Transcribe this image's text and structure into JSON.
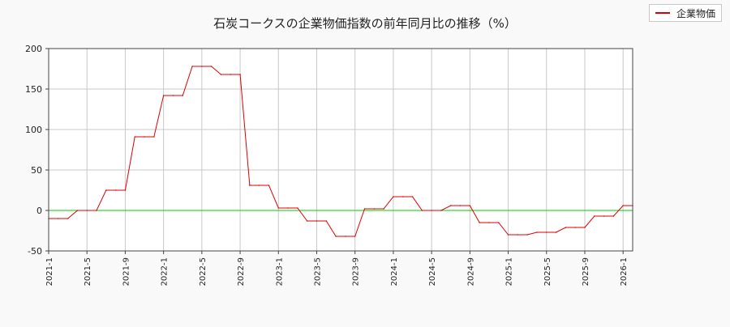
{
  "chart_data": {
    "type": "line",
    "title": "石炭コークスの企業物価指数の前年同月比の推移（%）",
    "xlabel": "",
    "ylabel": "",
    "ylim": [
      -50,
      200
    ],
    "yticks": [
      "-50",
      "0",
      "50",
      "100",
      "150",
      "200"
    ],
    "xticks": [
      "2021-1",
      "2021-5",
      "2021-9",
      "2022-1",
      "2022-5",
      "2022-9",
      "2023-1",
      "2023-5",
      "2023-9",
      "2024-1",
      "2024-5",
      "2024-9",
      "2025-1",
      "2025-5",
      "2025-9",
      "2026-1"
    ],
    "grid": true,
    "legend_position": "top-right",
    "zero_line_color": "#00cc00",
    "series": [
      {
        "name": "企業物価",
        "color": "#dd0000",
        "x": [
          "2021-1",
          "2021-2",
          "2021-3",
          "2021-4",
          "2021-5",
          "2021-6",
          "2021-7",
          "2021-8",
          "2021-9",
          "2021-10",
          "2021-11",
          "2021-12",
          "2022-1",
          "2022-2",
          "2022-3",
          "2022-4",
          "2022-5",
          "2022-6",
          "2022-7",
          "2022-8",
          "2022-9",
          "2022-10",
          "2022-11",
          "2022-12",
          "2023-1",
          "2023-2",
          "2023-3",
          "2023-4",
          "2023-5",
          "2023-6",
          "2023-7",
          "2023-8",
          "2023-9",
          "2023-10",
          "2023-11",
          "2023-12",
          "2024-1",
          "2024-2",
          "2024-3",
          "2024-4",
          "2024-5",
          "2024-6",
          "2024-7",
          "2024-8",
          "2024-9",
          "2024-10",
          "2024-11",
          "2024-12",
          "2025-1",
          "2025-2",
          "2025-3",
          "2025-4",
          "2025-5",
          "2025-6",
          "2025-7",
          "2025-8",
          "2025-9",
          "2025-10",
          "2025-11",
          "2025-12",
          "2026-1",
          "2026-2"
        ],
        "values": [
          -10,
          -10,
          -10,
          0,
          0,
          0,
          25,
          25,
          25,
          91,
          91,
          91,
          142,
          142,
          142,
          178,
          178,
          178,
          168,
          168,
          168,
          31,
          31,
          31,
          3,
          3,
          3,
          -13,
          -13,
          -13,
          -32,
          -32,
          -32,
          2,
          2,
          2,
          17,
          17,
          17,
          0,
          0,
          0,
          6,
          6,
          6,
          -15,
          -15,
          -15,
          -30,
          -30,
          -30,
          -27,
          -27,
          -27,
          -21,
          -21,
          -21,
          -7,
          -7,
          -7,
          6,
          6
        ]
      }
    ]
  }
}
